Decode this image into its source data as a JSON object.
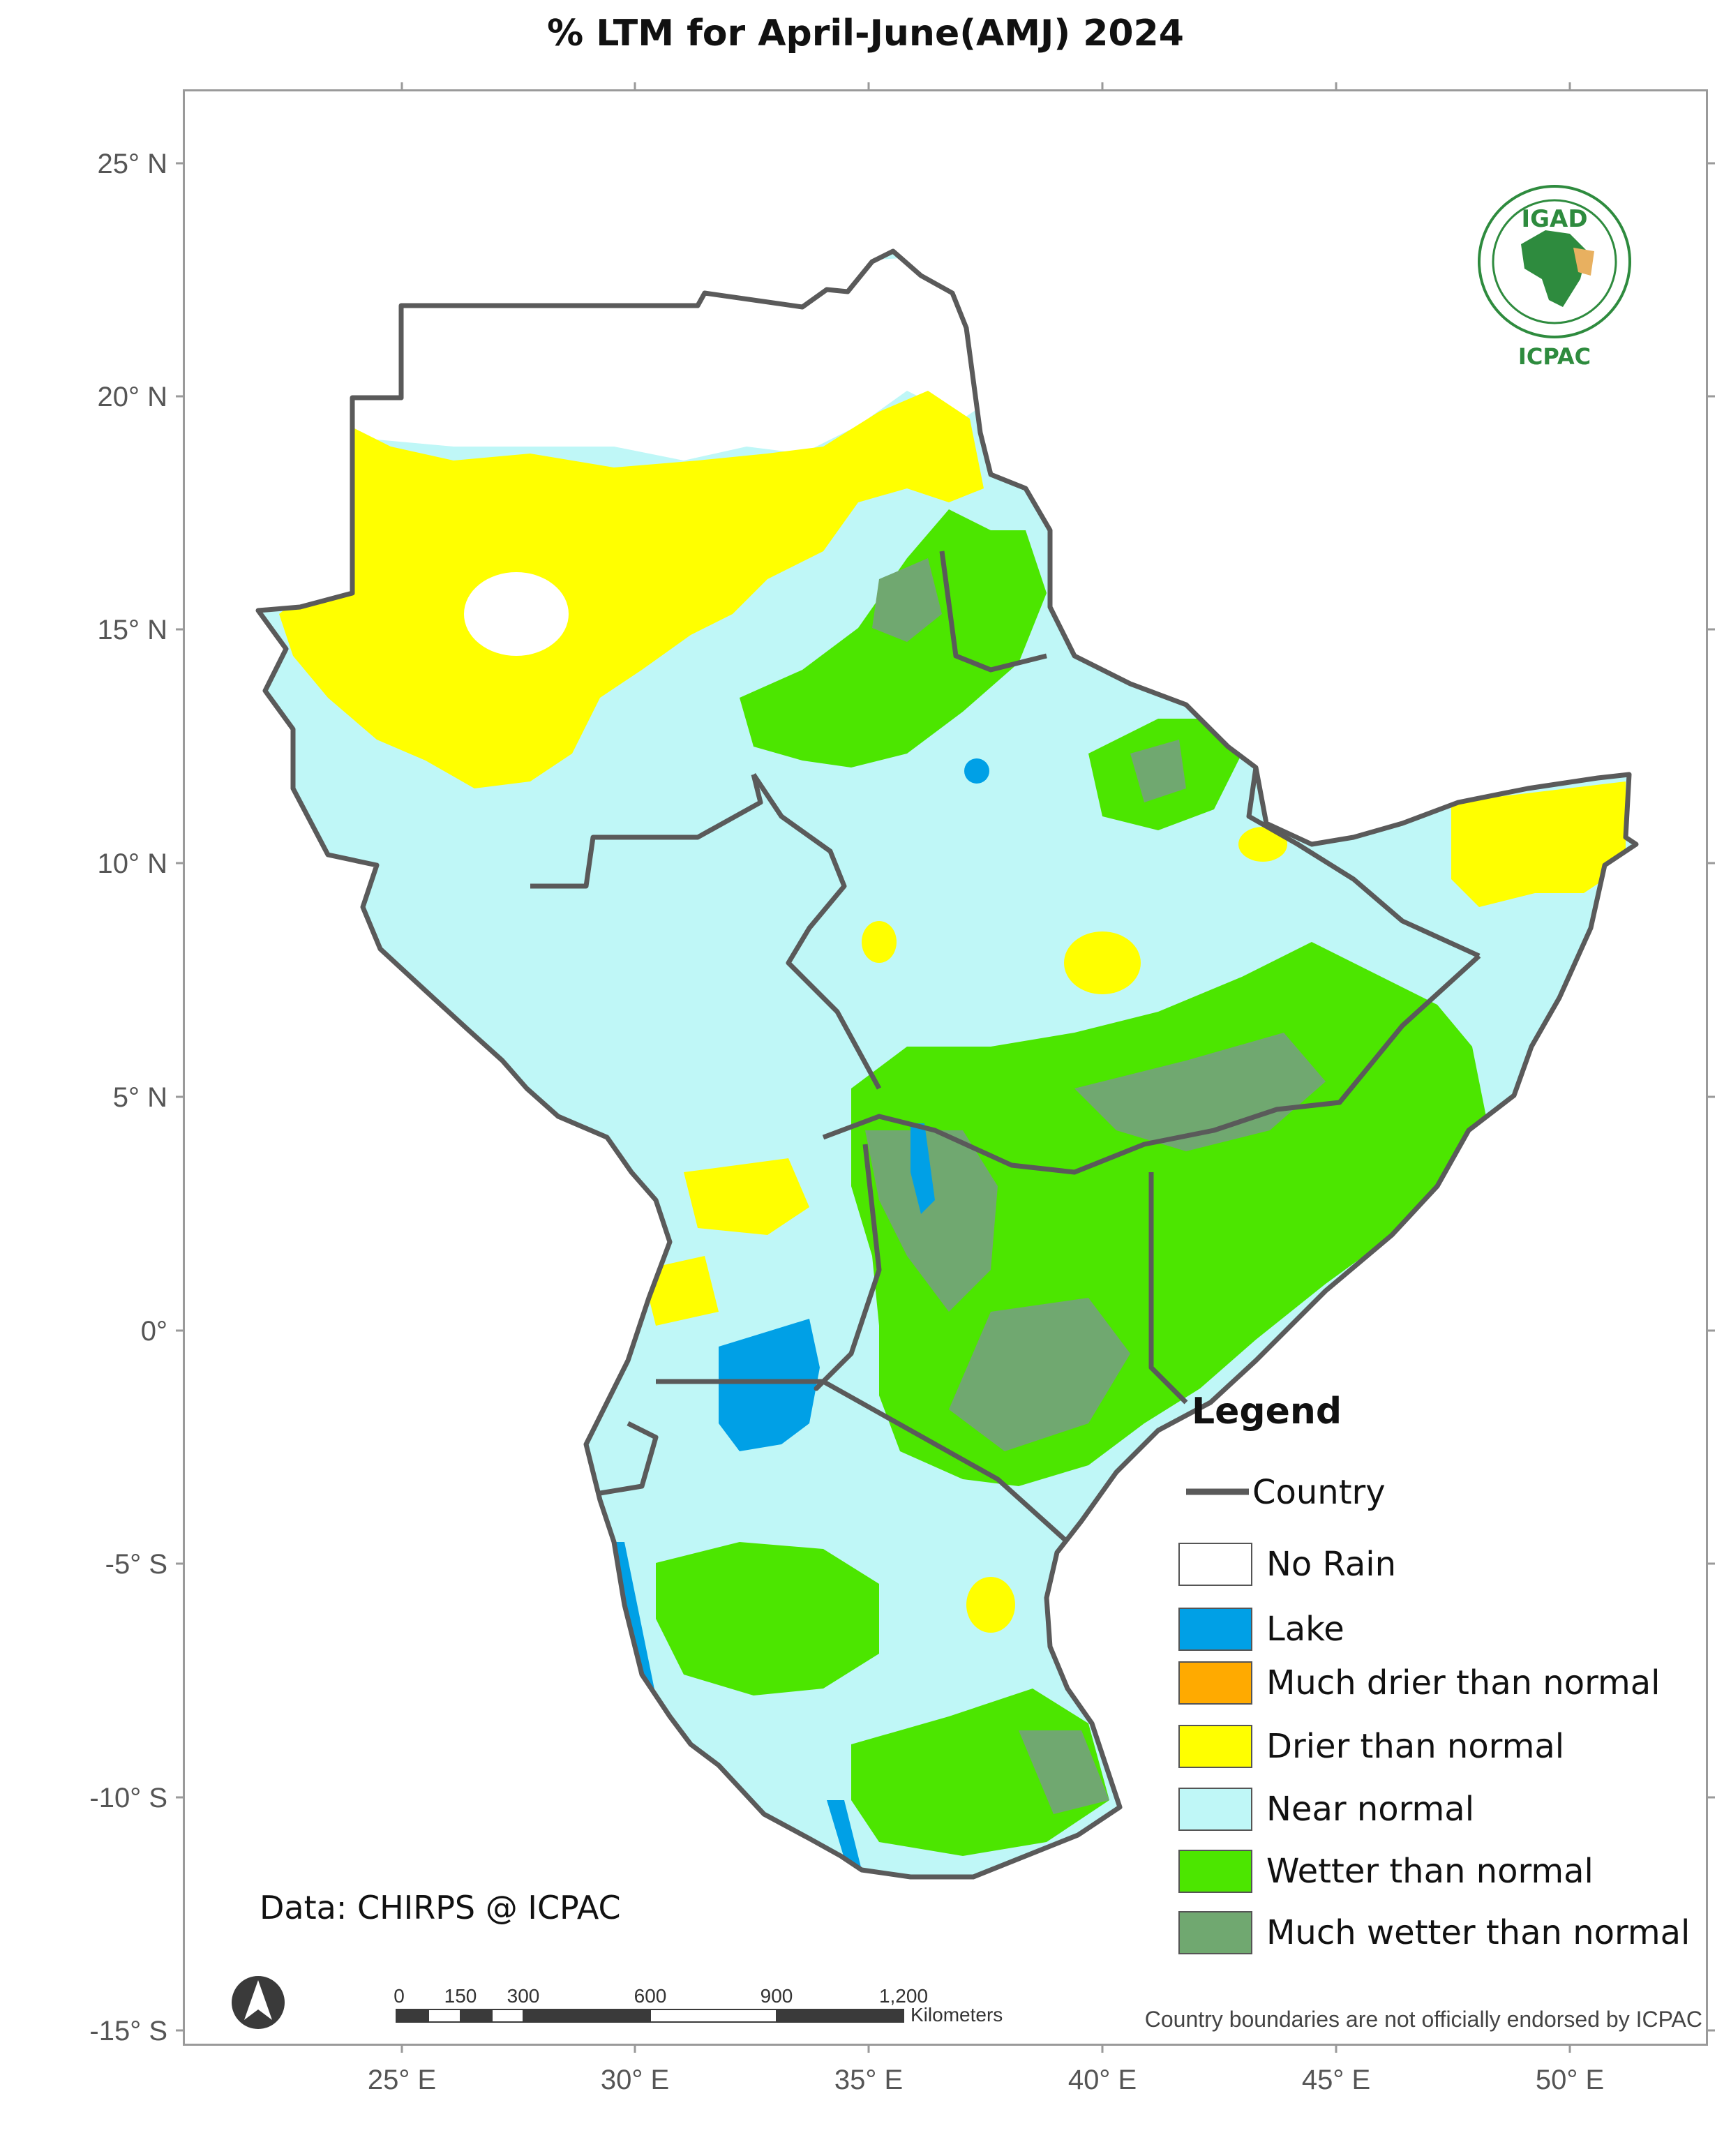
{
  "title": "% LTM  for  April-June(AMJ) 2024",
  "axes": {
    "lat_labels": [
      "25° N",
      "20° N",
      "15° N",
      "10° N",
      "5° N",
      "0°",
      "-5° S",
      "-10° S",
      "-15° S"
    ],
    "lon_labels": [
      "25° E",
      "30° E",
      "35° E",
      "40° E",
      "45° E",
      "50° E"
    ]
  },
  "legend": {
    "title": "Legend",
    "country_label": "Country",
    "items": [
      {
        "label": "No Rain",
        "color": "#ffffff"
      },
      {
        "label": "Lake",
        "color": "#00a0e6"
      },
      {
        "label": "Much drier than normal",
        "color": "#ffaa00"
      },
      {
        "label": "Drier than normal",
        "color": "#ffff00"
      },
      {
        "label": "Near normal",
        "color": "#bff7f7"
      },
      {
        "label": "Wetter than normal",
        "color": "#4ce600"
      },
      {
        "label": "Much wetter than normal",
        "color": "#70a870"
      }
    ]
  },
  "credit": "Data: CHIRPS @ ICPAC",
  "disclaimer": "Country boundaries are not officially endorsed by ICPAC",
  "scale_bar": {
    "labels": [
      "0",
      "150",
      "300",
      "600",
      "900",
      "1,200"
    ],
    "unit": "Kilometers"
  },
  "logo": {
    "top_text": "IGAD",
    "bottom_text": "ICPAC"
  },
  "colors": {
    "border": "#5a5a5a",
    "frame": "#9a9a9a"
  }
}
